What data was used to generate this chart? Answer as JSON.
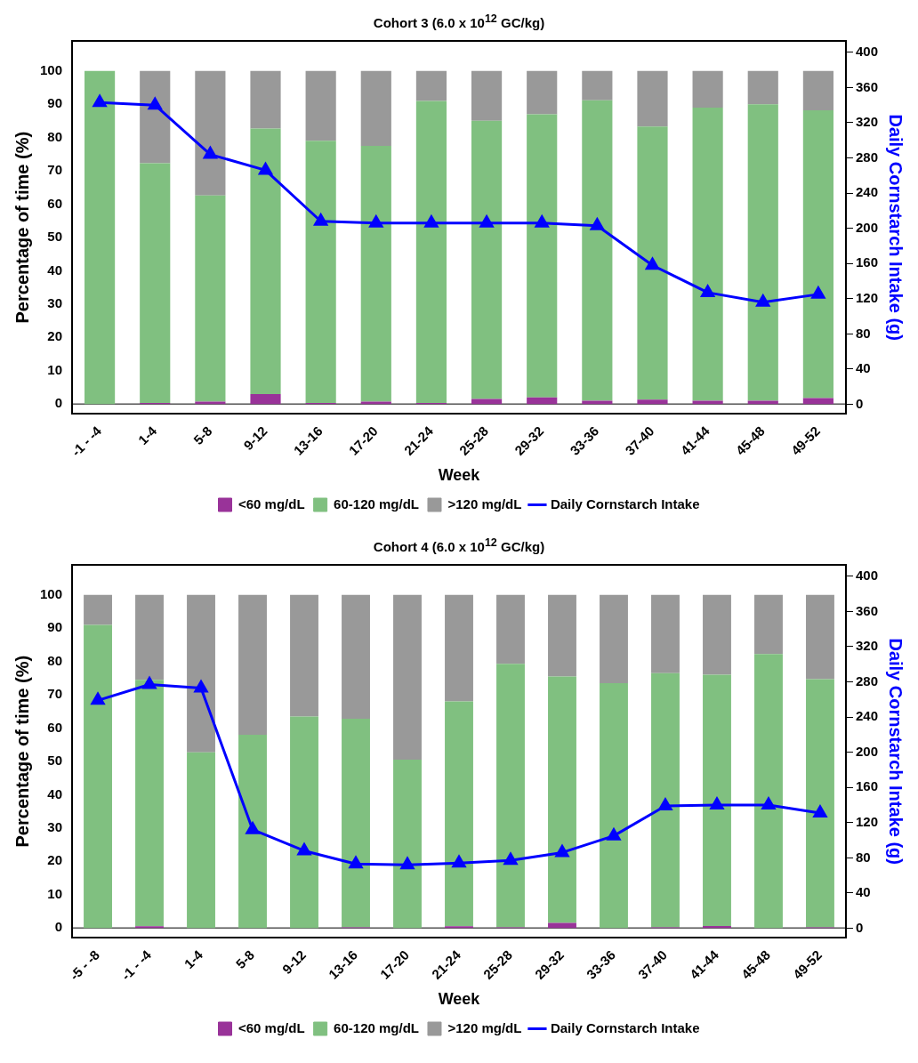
{
  "chart_data": [
    {
      "type": "bar",
      "title": "Cohort 3 (6.0 x 10$^{12}$ GC/kg)",
      "xlabel": "Week",
      "ylabel": "Percentage of time (%)",
      "y2label": "Daily Cornstarch Intake (g)",
      "ref_lines": [
        {
          "axis": "y",
          "value": 0,
          "color": "#000000"
        }
      ],
      "categories": [
        "-1 - -4",
        "1-4",
        "5-8",
        "9-12",
        "13-16",
        "17-20",
        "21-24",
        "25-28",
        "29-32",
        "33-36",
        "37-40",
        "41-44",
        "45-48",
        "49-52"
      ],
      "stacked": true,
      "legend": "bottom",
      "grid": false,
      "ylim": [
        -3,
        109
      ],
      "yticks": [
        0,
        10,
        20,
        30,
        40,
        50,
        60,
        70,
        80,
        90,
        100
      ],
      "y2lim": [
        -11,
        413
      ],
      "y2ticks": [
        0,
        40,
        80,
        120,
        160,
        200,
        240,
        280,
        320,
        360,
        400
      ],
      "series": [
        {
          "name": "<60 mg/dL",
          "color": "#993399",
          "values": [
            0,
            0.3,
            0.7,
            3,
            0.3,
            0.7,
            0.3,
            1.5,
            2,
            1,
            1.3,
            1,
            1,
            1.8
          ]
        },
        {
          "name": "60-120 mg/dL",
          "color": "#80c080",
          "values": [
            100,
            72,
            61.9,
            79.7,
            78.7,
            76.8,
            90.7,
            83.5,
            85,
            90.2,
            82,
            88,
            89,
            86.4
          ]
        },
        {
          "name": ">120 mg/dL",
          "color": "#999999",
          "values": [
            0,
            27.7,
            37.4,
            17.3,
            21,
            22.5,
            9,
            15,
            13,
            8.8,
            16.7,
            11,
            10,
            11.8
          ]
        },
        {
          "name": "Daily Cornstarch Intake",
          "type": "line",
          "axis": "y2",
          "color": "#0000ff",
          "marker": "triangle",
          "line_style": "solid",
          "values": [
            343,
            340,
            284,
            266,
            208,
            206,
            206,
            206,
            206,
            203,
            158,
            127,
            116,
            125
          ]
        }
      ]
    },
    {
      "type": "bar",
      "title": "Cohort 4 (6.0 x 10$^{12}$ GC/kg)",
      "xlabel": "Week",
      "ylabel": "Percentage of time (%)",
      "y2label": "Daily Cornstarch Intake (g)",
      "ref_lines": [
        {
          "axis": "y",
          "value": 0,
          "color": "#000000"
        }
      ],
      "categories": [
        "-5 - -8",
        "-1 - -4",
        "1-4",
        "5-8",
        "9-12",
        "13-16",
        "17-20",
        "21-24",
        "25-28",
        "29-32",
        "33-36",
        "37-40",
        "41-44",
        "45-48",
        "49-52"
      ],
      "stacked": true,
      "legend": "bottom",
      "grid": false,
      "ylim": [
        -3,
        109
      ],
      "yticks": [
        0,
        10,
        20,
        30,
        40,
        50,
        60,
        70,
        80,
        90,
        100
      ],
      "y2lim": [
        -11,
        413
      ],
      "y2ticks": [
        0,
        40,
        80,
        120,
        160,
        200,
        240,
        280,
        320,
        360,
        400
      ],
      "series": [
        {
          "name": "<60 mg/dL",
          "color": "#993399",
          "values": [
            0,
            0.5,
            0,
            0,
            0,
            0.2,
            0,
            0.5,
            0.2,
            1.5,
            0,
            0.2,
            0.6,
            0,
            0.2
          ]
        },
        {
          "name": "60-120 mg/dL",
          "color": "#80c080",
          "values": [
            91,
            74,
            52.7,
            58,
            63.5,
            62.6,
            50.5,
            67.5,
            79.1,
            74,
            73.5,
            76.3,
            75.4,
            82.2,
            74.5
          ]
        },
        {
          "name": ">120 mg/dL",
          "color": "#999999",
          "values": [
            9,
            25.5,
            47.3,
            42,
            36.5,
            37.2,
            49.5,
            32,
            20.7,
            24.5,
            26.5,
            23.5,
            24,
            17.8,
            25.3
          ]
        },
        {
          "name": "Daily Cornstarch Intake",
          "type": "line",
          "axis": "y2",
          "color": "#0000ff",
          "marker": "triangle",
          "line_style": "solid",
          "values": [
            259,
            277,
            273,
            112,
            88,
            73,
            72,
            74,
            77,
            86,
            105,
            139,
            140,
            140,
            131
          ]
        }
      ]
    }
  ]
}
